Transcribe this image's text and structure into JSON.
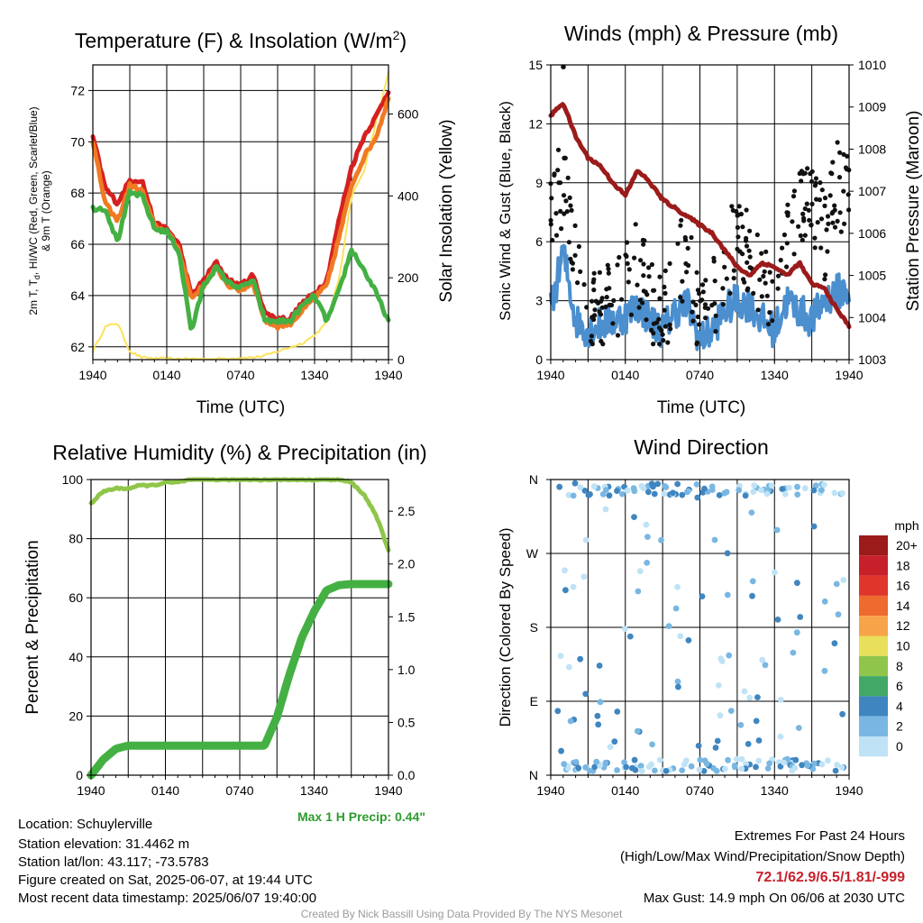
{
  "chart_data": [
    {
      "id": "temp",
      "type": "line",
      "title": "Temperature (F) & Insolation (W/m",
      "title_sup": "2",
      "title_tail": ")",
      "xlabel": "Time (UTC)",
      "ylabel_lines": [
        "2m T, T",
        "d",
        ", HI/WC (Red, Green, Scarlet/Blue)",
        "& 9m T (Orange)"
      ],
      "ylabel_right": "Solar Insolation (Yellow)",
      "xticks": [
        "1940",
        "0140",
        "0740",
        "1340",
        "1940"
      ],
      "ylim": [
        61.5,
        73.0
      ],
      "yticks": [
        62,
        64,
        66,
        68,
        70,
        72
      ],
      "y2lim": [
        0,
        720
      ],
      "y2ticks": [
        0,
        200,
        400,
        600
      ],
      "x": [
        0,
        1,
        2,
        3,
        4,
        5,
        6,
        7,
        8,
        9,
        10,
        11,
        12,
        13,
        14,
        15,
        16,
        17,
        18,
        19,
        20,
        21,
        22,
        23,
        24
      ],
      "series": [
        {
          "color": "#d62020",
          "values": [
            70.2,
            68.2,
            67.6,
            68.5,
            68.5,
            66.8,
            66.6,
            66.0,
            64.0,
            64.6,
            65.3,
            64.6,
            64.4,
            64.8,
            63.3,
            63.1,
            63.1,
            63.7,
            64.1,
            64.6,
            67.0,
            69.0,
            70.2,
            71.0,
            72.0
          ]
        },
        {
          "color": "#f07a23",
          "values": [
            70.0,
            67.6,
            66.9,
            68.3,
            68.1,
            66.7,
            66.5,
            65.8,
            63.9,
            64.4,
            65.1,
            64.4,
            64.2,
            64.5,
            63.0,
            62.8,
            62.9,
            63.4,
            63.9,
            64.4,
            66.3,
            68.3,
            69.4,
            70.2,
            71.7
          ]
        },
        {
          "color": "#44b043",
          "values": [
            67.4,
            67.4,
            66.1,
            68.0,
            67.9,
            66.6,
            66.5,
            65.7,
            62.6,
            64.4,
            65.1,
            64.5,
            64.3,
            64.6,
            63.0,
            63.0,
            63.0,
            63.6,
            64.0,
            63.0,
            64.2,
            65.8,
            65.0,
            64.1,
            63.0
          ]
        }
      ],
      "y2series": [
        {
          "color": "#fde25a",
          "values": [
            20,
            80,
            90,
            20,
            5,
            3,
            2,
            2,
            2,
            2,
            2,
            3,
            5,
            5,
            10,
            20,
            30,
            40,
            60,
            90,
            200,
            400,
            460,
            580,
            700
          ]
        }
      ]
    },
    {
      "id": "wind",
      "type": "scatter",
      "title": "Winds (mph) & Pressure (mb)",
      "xlabel": "Time (UTC)",
      "ylabel": "Sonic Wind & Gust (Blue, Black)",
      "ylabel_right": "Station Pressure (Maroon)",
      "xticks": [
        "1940",
        "0140",
        "0740",
        "1340",
        "1940"
      ],
      "ylim": [
        0,
        15
      ],
      "yticks": [
        0,
        3,
        6,
        9,
        12,
        15
      ],
      "y2lim": [
        1003,
        1010
      ],
      "y2ticks": [
        1003,
        1004,
        1005,
        1006,
        1007,
        1008,
        1009,
        1010
      ],
      "x": [
        0,
        1,
        2,
        3,
        4,
        5,
        6,
        7,
        8,
        9,
        10,
        11,
        12,
        13,
        14,
        15,
        16,
        17,
        18,
        19,
        20,
        21,
        22,
        23,
        24
      ],
      "wind_series": {
        "color": "#4b8fcf",
        "values": [
          2.5,
          5.5,
          2.0,
          1.5,
          1.8,
          2.0,
          2.2,
          2.8,
          2.0,
          1.5,
          2.5,
          2.8,
          1.0,
          1.5,
          2.5,
          3.0,
          2.8,
          2.0,
          1.5,
          3.0,
          2.5,
          2.0,
          3.0,
          3.5,
          3.5
        ]
      },
      "gust_series": {
        "color": "#111111",
        "values": [
          8.0,
          9.0,
          4.5,
          2.0,
          2.5,
          3.0,
          4.0,
          5.0,
          3.0,
          2.0,
          4.5,
          5.5,
          2.0,
          3.0,
          5.0,
          6.0,
          5.5,
          4.0,
          3.0,
          7.0,
          8.0,
          8.5,
          6.0,
          9.0,
          8.0
        ]
      },
      "gust_max": 14.9,
      "pressure_series": {
        "color": "#9b1b1b",
        "values": [
          1008.8,
          1009.1,
          1008.3,
          1007.8,
          1007.6,
          1007.2,
          1006.9,
          1007.5,
          1007.2,
          1006.8,
          1006.6,
          1006.4,
          1006.2,
          1006.0,
          1005.6,
          1005.2,
          1005.0,
          1005.3,
          1005.2,
          1005.0,
          1005.3,
          1004.8,
          1004.7,
          1004.2,
          1003.8
        ]
      }
    },
    {
      "id": "rh",
      "type": "line",
      "title": "Relative Humidity (%) & Precipitation (in)",
      "ylabel": "Percent & Precipitation",
      "xticks": [
        "1940",
        "0140",
        "0740",
        "1340",
        "1940"
      ],
      "ylim": [
        0,
        100
      ],
      "yticks": [
        0,
        20,
        40,
        60,
        80,
        100
      ],
      "y2lim": [
        0,
        2.8
      ],
      "y2ticks": [
        "0.0",
        "0.5",
        "1.0",
        "1.5",
        "2.0",
        "2.5"
      ],
      "x": [
        0,
        1,
        2,
        3,
        4,
        5,
        6,
        7,
        8,
        9,
        10,
        11,
        12,
        13,
        14,
        15,
        16,
        17,
        18,
        19,
        20,
        21,
        22,
        23,
        24
      ],
      "rh_series": {
        "color": "#8fc64a",
        "values": [
          92,
          96,
          97,
          97,
          98,
          98,
          99,
          99,
          100,
          100,
          100,
          100,
          100,
          100,
          100,
          100,
          100,
          100,
          100,
          100,
          100,
          99,
          95,
          88,
          76
        ]
      },
      "precip_series": {
        "color": "#44b043",
        "values": [
          0.0,
          0.15,
          0.25,
          0.28,
          0.28,
          0.28,
          0.28,
          0.28,
          0.28,
          0.28,
          0.28,
          0.28,
          0.28,
          0.28,
          0.28,
          0.55,
          0.95,
          1.3,
          1.55,
          1.75,
          1.8,
          1.81,
          1.81,
          1.81,
          1.81
        ]
      },
      "max_precip_label": "Max 1 H Precip: 0.44\""
    },
    {
      "id": "dir",
      "type": "scatter",
      "title": "Wind Direction",
      "ylabel": "Direction (Colored By Speed)",
      "xticks": [
        "1940",
        "0140",
        "0740",
        "1340",
        "1940"
      ],
      "yticks": [
        "N",
        "E",
        "S",
        "W",
        "N"
      ],
      "colorbar_title": "mph",
      "colorbar_labels": [
        "20+",
        "18",
        "16",
        "14",
        "12",
        "10",
        "8",
        "6",
        "4",
        "2",
        "0"
      ],
      "colorbar_colors": [
        "#9b1b1b",
        "#c8202a",
        "#e0352b",
        "#ee6a2e",
        "#f7a34a",
        "#e8df5b",
        "#8fc64a",
        "#41a867",
        "#3f86c0",
        "#79b7e2",
        "#bfe2f6"
      ]
    }
  ],
  "info": {
    "location": "Location: Schuylerville",
    "elevation": "Station elevation: 31.4462 m",
    "latlon": "Station lat/lon: 43.117; -73.5783",
    "created": "Figure created on Sat, 2025-06-07, at 19:44 UTC",
    "recent": "Most recent data timestamp: 2025/06/07 19:40:00"
  },
  "extremes": {
    "title": "Extremes For Past 24 Hours",
    "subtitle": "(High/Low/Max Wind/Precipitation/Snow Depth)",
    "values": "72.1/62.9/6.5/1.81/-999",
    "max_gust": "Max Gust: 14.9 mph On 06/06 at 2030 UTC"
  },
  "credit": "Created By Nick Bassill Using Data Provided By The NYS Mesonet"
}
